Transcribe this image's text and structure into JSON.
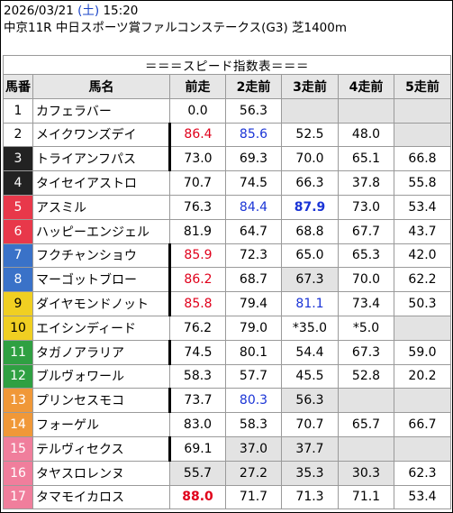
{
  "header": {
    "date": "2026/03/21",
    "weekday_open": "(",
    "weekday": "土",
    "weekday_close": ")",
    "time": "15:20",
    "race": "中京11R 中日スポーツ賞ファルコンステークス(G3) 芝1400m"
  },
  "table_title": "＝＝＝スピード指数表＝＝＝",
  "columns": [
    "馬番",
    "馬名",
    "前走",
    "2走前",
    "3走前",
    "4走前",
    "5走前"
  ],
  "colors": {
    "gate_1": "#ffffff",
    "gate_2": "#ffffff",
    "gate_3": "#222222",
    "gate_4": "#222222",
    "gate_5": "#e8384a",
    "gate_6": "#e8384a",
    "gate_7": "#3a72c8",
    "gate_8": "#3a72c8",
    "gate_9": "#f0cf22",
    "gate_10": "#f0cf22",
    "gate_11": "#2fa042",
    "gate_12": "#2fa042",
    "gate_13": "#f09838",
    "gate_14": "#f09838",
    "gate_15": "#f07e9c",
    "gate_16": "#f07e9c",
    "gate_17": "#f07e9c",
    "highlight_red": "#e0001b",
    "highlight_blue": "#1a34d6",
    "blank_cell": "#e3e3e3"
  },
  "horses": [
    {
      "no": "1",
      "name": "カフェラバー",
      "gate": 1,
      "nameBar": false,
      "vals": [
        {
          "v": "0.0"
        },
        {
          "v": "56.3"
        },
        {
          "v": "",
          "gray": true
        },
        {
          "v": "",
          "gray": true
        },
        {
          "v": "",
          "gray": true
        }
      ]
    },
    {
      "no": "2",
      "name": "メイクワンズデイ",
      "gate": 1,
      "nameBar": true,
      "vals": [
        {
          "v": "86.4",
          "c": "red"
        },
        {
          "v": "85.6",
          "c": "blue"
        },
        {
          "v": "52.5"
        },
        {
          "v": "48.0"
        },
        {
          "v": "",
          "gray": true
        }
      ]
    },
    {
      "no": "3",
      "name": "トライアンフパス",
      "gate": 2,
      "nameBar": true,
      "vals": [
        {
          "v": "73.0"
        },
        {
          "v": "69.3"
        },
        {
          "v": "70.0"
        },
        {
          "v": "65.1"
        },
        {
          "v": "66.8"
        }
      ]
    },
    {
      "no": "4",
      "name": "タイセイアストロ",
      "gate": 2,
      "nameBar": false,
      "vals": [
        {
          "v": "70.7"
        },
        {
          "v": "74.5"
        },
        {
          "v": "66.3"
        },
        {
          "v": "37.8"
        },
        {
          "v": "55.8"
        }
      ]
    },
    {
      "no": "5",
      "name": "アスミル",
      "gate": 3,
      "nameBar": false,
      "vals": [
        {
          "v": "76.3"
        },
        {
          "v": "84.4",
          "c": "blue"
        },
        {
          "v": "87.9",
          "c": "blue",
          "b": true
        },
        {
          "v": "73.0"
        },
        {
          "v": "53.4"
        }
      ]
    },
    {
      "no": "6",
      "name": "ハッピーエンジェル",
      "gate": 3,
      "nameBar": false,
      "vals": [
        {
          "v": "81.9"
        },
        {
          "v": "64.7"
        },
        {
          "v": "68.8"
        },
        {
          "v": "67.7"
        },
        {
          "v": "43.7"
        }
      ]
    },
    {
      "no": "7",
      "name": "フクチャンショウ",
      "gate": 4,
      "nameBar": true,
      "vals": [
        {
          "v": "85.9",
          "c": "red"
        },
        {
          "v": "72.3"
        },
        {
          "v": "65.0"
        },
        {
          "v": "65.3"
        },
        {
          "v": "42.0"
        }
      ]
    },
    {
      "no": "8",
      "name": "マーゴットブロー",
      "gate": 4,
      "nameBar": true,
      "vals": [
        {
          "v": "86.2",
          "c": "red"
        },
        {
          "v": "68.7"
        },
        {
          "v": "67.3",
          "gray": true
        },
        {
          "v": "70.0"
        },
        {
          "v": "62.2"
        }
      ]
    },
    {
      "no": "9",
      "name": "ダイヤモンドノット",
      "gate": 5,
      "nameBar": true,
      "vals": [
        {
          "v": "85.8",
          "c": "red"
        },
        {
          "v": "79.4"
        },
        {
          "v": "81.1",
          "c": "blue"
        },
        {
          "v": "73.4"
        },
        {
          "v": "50.3"
        }
      ]
    },
    {
      "no": "10",
      "name": "エイシンディード",
      "gate": 5,
      "nameBar": false,
      "vals": [
        {
          "v": "76.2"
        },
        {
          "v": "79.0"
        },
        {
          "v": "*35.0"
        },
        {
          "v": "*5.0"
        },
        {
          "v": "",
          "gray": true
        }
      ]
    },
    {
      "no": "11",
      "name": "タガノアラリア",
      "gate": 6,
      "nameBar": true,
      "vals": [
        {
          "v": "74.5"
        },
        {
          "v": "80.1"
        },
        {
          "v": "54.4"
        },
        {
          "v": "67.3"
        },
        {
          "v": "59.0"
        }
      ]
    },
    {
      "no": "12",
      "name": "ブルヴォワール",
      "gate": 6,
      "nameBar": false,
      "vals": [
        {
          "v": "58.3"
        },
        {
          "v": "57.7"
        },
        {
          "v": "45.5"
        },
        {
          "v": "52.8"
        },
        {
          "v": "20.2"
        }
      ]
    },
    {
      "no": "13",
      "name": "プリンセスモコ",
      "gate": 7,
      "nameBar": true,
      "vals": [
        {
          "v": "73.7"
        },
        {
          "v": "80.3",
          "c": "blue"
        },
        {
          "v": "56.3",
          "gray": true
        },
        {
          "v": "",
          "gray": true
        },
        {
          "v": "",
          "gray": true
        }
      ]
    },
    {
      "no": "14",
      "name": "フォーゲル",
      "gate": 7,
      "nameBar": false,
      "vals": [
        {
          "v": "83.0"
        },
        {
          "v": "58.3"
        },
        {
          "v": "70.7"
        },
        {
          "v": "65.7"
        },
        {
          "v": "66.7"
        }
      ]
    },
    {
      "no": "15",
      "name": "テルヴィセクス",
      "gate": 8,
      "nameBar": true,
      "vals": [
        {
          "v": "69.1"
        },
        {
          "v": "37.0",
          "gray": true
        },
        {
          "v": "37.7",
          "gray": true
        },
        {
          "v": "",
          "gray": true
        },
        {
          "v": "",
          "gray": true
        }
      ]
    },
    {
      "no": "16",
      "name": "タヤスロレンヌ",
      "gate": 8,
      "nameBar": false,
      "vals": [
        {
          "v": "55.7",
          "gray": true
        },
        {
          "v": "27.2",
          "gray": true
        },
        {
          "v": "35.3",
          "gray": true
        },
        {
          "v": "30.3",
          "gray": true
        },
        {
          "v": "62.3"
        }
      ]
    },
    {
      "no": "17",
      "name": "タマモイカロス",
      "gate": 8,
      "nameBar": false,
      "vals": [
        {
          "v": "88.0",
          "c": "red",
          "b": true
        },
        {
          "v": "71.7"
        },
        {
          "v": "71.3"
        },
        {
          "v": "71.1"
        },
        {
          "v": "53.4"
        }
      ]
    }
  ]
}
